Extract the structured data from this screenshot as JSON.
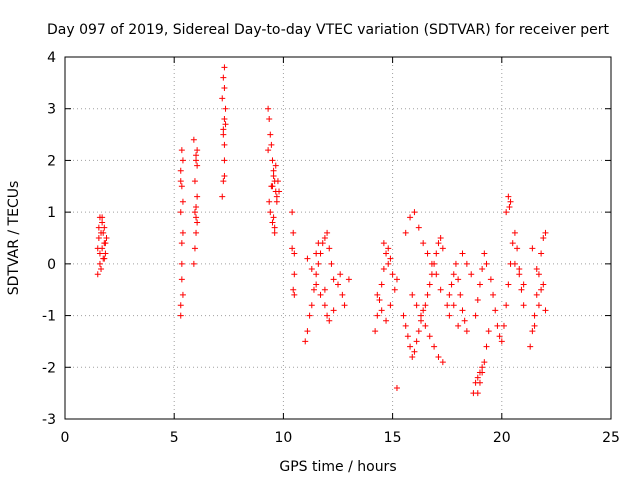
{
  "chart_data": {
    "type": "scatter",
    "title": "Day 097 of 2019, Sidereal Day-to-day VTEC variation (SDTVAR) for receiver pert",
    "xlabel": "GPS time / hours",
    "ylabel": "SDTVAR / TECUs",
    "xlim": [
      0,
      25
    ],
    "ylim": [
      -3,
      4
    ],
    "xticks": [
      "0",
      "5",
      "10",
      "15",
      "20",
      "25"
    ],
    "yticks": [
      "-3",
      "-2",
      "-1",
      "0",
      "1",
      "2",
      "3",
      "4"
    ],
    "grid": true,
    "marker": "plus",
    "color": "#ff0000",
    "series": [
      {
        "name": "SDTVAR",
        "x": [
          1.5,
          1.55,
          1.6,
          1.6,
          1.65,
          1.65,
          1.7,
          1.7,
          1.75,
          1.8,
          1.8,
          1.85,
          1.9,
          1.5,
          1.6,
          1.75,
          1.85,
          1.55,
          1.7,
          1.8,
          5.3,
          5.3,
          5.35,
          5.35,
          5.4,
          5.4,
          5.35,
          5.3,
          5.4,
          5.35,
          5.3,
          5.35,
          5.4,
          5.3,
          5.9,
          5.95,
          6.0,
          6.0,
          6.05,
          5.95,
          6.0,
          6.05,
          5.9,
          6.0,
          6.05,
          5.95,
          6.0,
          6.05,
          7.2,
          7.25,
          7.3,
          7.3,
          7.25,
          7.3,
          7.35,
          7.2,
          7.3,
          7.25,
          7.3,
          7.35,
          7.3,
          7.25,
          9.3,
          9.35,
          9.4,
          9.45,
          9.5,
          9.55,
          9.6,
          9.65,
          9.7,
          9.4,
          9.5,
          9.6,
          9.3,
          9.45,
          9.55,
          9.65,
          9.75,
          9.8,
          9.35,
          9.5,
          9.7,
          9.55,
          9.6,
          10.4,
          10.45,
          10.5,
          10.5,
          10.45,
          10.4,
          10.5,
          11.0,
          11.1,
          11.2,
          11.3,
          11.4,
          11.5,
          11.6,
          11.7,
          11.8,
          11.9,
          12.0,
          12.1,
          12.2,
          12.3,
          11.1,
          11.3,
          11.5,
          11.7,
          11.9,
          12.1,
          12.3,
          11.5,
          11.6,
          11.9,
          12.0,
          12.5,
          12.6,
          12.7,
          12.8,
          13.0,
          14.2,
          14.3,
          14.4,
          14.5,
          14.6,
          14.7,
          14.8,
          14.9,
          15.0,
          14.3,
          14.5,
          14.7,
          14.9,
          15.1,
          14.6,
          14.8,
          15.2,
          15.5,
          15.6,
          15.7,
          15.8,
          15.9,
          16.0,
          16.1,
          16.2,
          16.3,
          16.4,
          16.5,
          16.6,
          16.7,
          16.8,
          16.9,
          17.0,
          17.1,
          17.2,
          17.3,
          15.6,
          15.8,
          16.0,
          16.2,
          16.4,
          16.6,
          16.8,
          17.0,
          17.2,
          16.5,
          16.7,
          16.9,
          17.1,
          17.3,
          15.9,
          16.1,
          16.3,
          17.5,
          17.6,
          17.7,
          17.8,
          17.9,
          18.0,
          18.1,
          18.2,
          18.3,
          18.4,
          17.6,
          17.8,
          18.0,
          18.2,
          18.4,
          18.6,
          18.7,
          18.8,
          18.9,
          19.0,
          19.1,
          19.2,
          19.3,
          19.4,
          18.8,
          18.9,
          19.0,
          19.1,
          19.2,
          19.3,
          19.5,
          19.6,
          19.7,
          19.8,
          19.9,
          20.0,
          20.1,
          20.2,
          20.3,
          20.4,
          20.5,
          20.6,
          20.7,
          20.8,
          20.9,
          21.0,
          20.2,
          20.4,
          20.6,
          20.8,
          21.0,
          21.3,
          21.4,
          21.5,
          21.6,
          21.7,
          21.8,
          21.9,
          22.0,
          21.4,
          21.6,
          21.8,
          22.0,
          21.5,
          21.7,
          21.9,
          15.2,
          18.9,
          19.0,
          19.1,
          20.3,
          20.35
        ],
        "y": [
          -0.2,
          0.5,
          0.9,
          0.2,
          -0.1,
          0.6,
          0.3,
          0.8,
          0.1,
          0.4,
          0.7,
          0.2,
          0.5,
          0.3,
          0.0,
          0.6,
          0.4,
          0.7,
          0.9,
          0.1,
          -1.0,
          -0.8,
          -0.3,
          0.0,
          0.6,
          1.2,
          1.5,
          1.8,
          2.0,
          2.2,
          1.0,
          0.4,
          -0.6,
          1.6,
          0.0,
          0.3,
          0.9,
          1.1,
          1.3,
          1.6,
          2.0,
          2.2,
          2.4,
          0.6,
          0.8,
          1.0,
          2.1,
          1.9,
          1.3,
          1.6,
          2.0,
          2.3,
          2.6,
          2.8,
          3.0,
          3.2,
          3.4,
          3.6,
          3.8,
          2.7,
          1.7,
          2.5,
          3.0,
          2.8,
          2.5,
          2.3,
          2.0,
          1.8,
          1.6,
          1.4,
          1.2,
          1.0,
          0.8,
          0.6,
          2.2,
          1.5,
          1.7,
          1.9,
          1.6,
          1.4,
          1.2,
          1.5,
          1.3,
          0.9,
          0.7,
          1.0,
          0.6,
          0.2,
          -0.2,
          -0.5,
          0.3,
          -0.6,
          -1.5,
          -1.3,
          -1.0,
          -0.8,
          -0.5,
          -0.2,
          0.0,
          0.2,
          0.4,
          0.5,
          0.6,
          0.3,
          0.0,
          -0.3,
          0.1,
          -0.1,
          -0.4,
          -0.6,
          -0.8,
          -1.1,
          -0.9,
          0.2,
          0.4,
          -0.5,
          -1.0,
          -0.4,
          -0.2,
          -0.6,
          -0.8,
          -0.3,
          -1.3,
          -1.0,
          -0.7,
          -0.4,
          -0.1,
          0.2,
          0.3,
          0.1,
          -0.2,
          -0.6,
          -0.9,
          -1.1,
          -0.8,
          -0.5,
          0.4,
          0.0,
          -0.3,
          -1.0,
          -1.2,
          -1.4,
          -1.6,
          -1.8,
          -1.7,
          -1.5,
          -1.3,
          -1.1,
          -0.9,
          -0.8,
          -0.6,
          -0.4,
          -0.2,
          0.0,
          0.2,
          0.4,
          0.5,
          0.3,
          0.6,
          0.9,
          1.0,
          0.7,
          0.4,
          0.2,
          0.0,
          -0.2,
          -0.5,
          -1.2,
          -1.4,
          -1.6,
          -1.8,
          -1.9,
          -0.6,
          -0.8,
          -1.0,
          -0.8,
          -0.6,
          -0.4,
          -0.2,
          0.0,
          -0.3,
          -0.6,
          -0.9,
          -1.1,
          -1.3,
          -1.0,
          -0.8,
          -1.2,
          0.2,
          0.0,
          -0.2,
          -2.5,
          -2.3,
          -2.2,
          -2.1,
          -2.0,
          -1.9,
          -1.6,
          -1.3,
          -1.0,
          -0.7,
          -0.4,
          -0.1,
          0.2,
          0.0,
          -0.3,
          -0.6,
          -0.9,
          -1.2,
          -1.4,
          -1.5,
          -1.2,
          -0.8,
          -0.4,
          0.0,
          0.4,
          0.6,
          0.3,
          -0.1,
          -0.5,
          -0.8,
          1.0,
          1.2,
          0.0,
          -0.2,
          -0.4,
          -1.6,
          -1.3,
          -1.0,
          -0.6,
          -0.2,
          0.2,
          0.5,
          0.6,
          0.3,
          -0.1,
          -0.5,
          -0.9,
          -1.2,
          -0.8,
          -0.4,
          -2.4,
          -2.5,
          -2.3,
          -2.1,
          1.3,
          1.1
        ]
      }
    ]
  }
}
